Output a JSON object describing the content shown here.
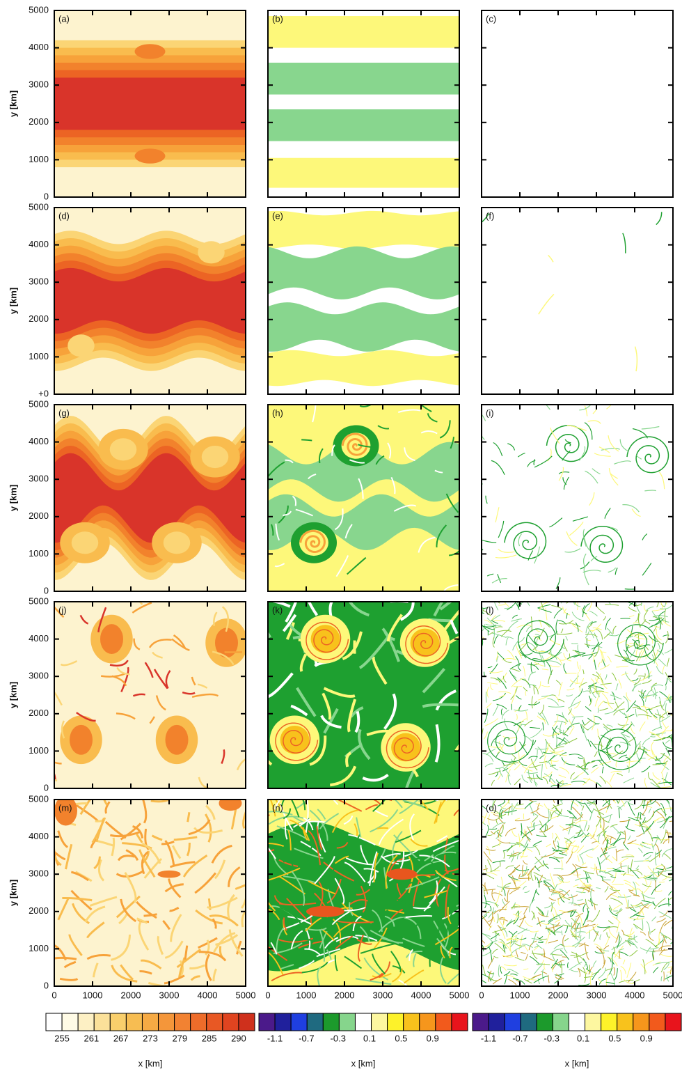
{
  "axes": {
    "xlabel": "x [km]",
    "ylabel": "y [km]",
    "xlim": [
      0,
      5000
    ],
    "ylim": [
      0,
      5000
    ],
    "xticks": [
      0,
      1000,
      2000,
      3000,
      4000,
      5000
    ],
    "yticks": [
      0,
      1000,
      2000,
      3000,
      4000,
      5000
    ],
    "yticks_row2": [
      {
        "value": 0,
        "label": "+0"
      },
      1000,
      2000,
      3000,
      4000,
      5000
    ]
  },
  "panels": [
    "(a)",
    "(b)",
    "(c)",
    "(d)",
    "(e)",
    "(f)",
    "(g)",
    "(h)",
    "(i)",
    "(j)",
    "(k)",
    "(l)",
    "(m)",
    "(n)",
    "(o)"
  ],
  "colorbars": [
    {
      "colors": [
        "#ffffff",
        "#fffbe6",
        "#fdf0c4",
        "#fbe19a",
        "#f9cf6c",
        "#f7bd52",
        "#f6aa44",
        "#f4963a",
        "#f28232",
        "#ee6c2a",
        "#e85824",
        "#e04420",
        "#cf301c"
      ],
      "ticks": [
        255,
        261,
        267,
        273,
        279,
        285,
        290
      ]
    },
    {
      "colors": [
        "#4b1a8a",
        "#20209c",
        "#1f3fe0",
        "#1f6a80",
        "#1c9a2c",
        "#86d58c",
        "#ffffff",
        "#fdf7a0",
        "#fdf22a",
        "#f8c21c",
        "#f6961c",
        "#f25a1c",
        "#e8141c"
      ],
      "ticks": [
        -1.1,
        -0.7,
        -0.3,
        0.1,
        0.5,
        0.9
      ]
    },
    {
      "colors": [
        "#4b1a8a",
        "#20209c",
        "#1f3fe0",
        "#1f6a80",
        "#1c9a2c",
        "#86d58c",
        "#ffffff",
        "#fdf7a0",
        "#fdf22a",
        "#f8c21c",
        "#f6961c",
        "#f25a1c",
        "#e8141c"
      ],
      "ticks": [
        -1.1,
        -0.7,
        -0.3,
        0.1,
        0.5,
        0.9
      ]
    }
  ]
}
